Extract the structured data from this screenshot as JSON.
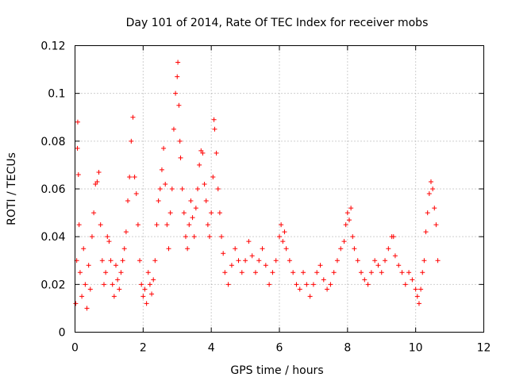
{
  "chart_data": {
    "type": "scatter",
    "title": "Day 101 of 2014, Rate Of TEC Index for receiver mobs",
    "xlabel": "GPS time / hours",
    "ylabel": "ROTI / TECUs",
    "xlim": [
      0,
      12
    ],
    "ylim": [
      0,
      0.12
    ],
    "xticks": [
      0,
      2,
      4,
      6,
      8,
      10,
      12
    ],
    "xtick_labels": [
      "0",
      "2",
      "4",
      "6",
      "8",
      "10",
      "12"
    ],
    "yticks": [
      0,
      0.02,
      0.04,
      0.06,
      0.08,
      0.1,
      0.12
    ],
    "ytick_labels": [
      "0",
      "0.02",
      "0.04",
      "0.06",
      "0.08",
      "0.1",
      "0.12"
    ],
    "grid": true,
    "marker": "+",
    "color": "#ff0000",
    "series": [
      {
        "name": "ROTI",
        "points": [
          [
            0.02,
            0.012
          ],
          [
            0.05,
            0.03
          ],
          [
            0.07,
            0.077
          ],
          [
            0.08,
            0.088
          ],
          [
            0.1,
            0.066
          ],
          [
            0.12,
            0.045
          ],
          [
            0.15,
            0.025
          ],
          [
            0.2,
            0.015
          ],
          [
            0.25,
            0.035
          ],
          [
            0.3,
            0.02
          ],
          [
            0.35,
            0.01
          ],
          [
            0.4,
            0.028
          ],
          [
            0.45,
            0.018
          ],
          [
            0.5,
            0.04
          ],
          [
            0.55,
            0.05
          ],
          [
            0.6,
            0.062
          ],
          [
            0.65,
            0.063
          ],
          [
            0.7,
            0.067
          ],
          [
            0.75,
            0.045
          ],
          [
            0.8,
            0.03
          ],
          [
            0.85,
            0.02
          ],
          [
            0.9,
            0.025
          ],
          [
            0.95,
            0.04
          ],
          [
            1.0,
            0.038
          ],
          [
            1.05,
            0.03
          ],
          [
            1.1,
            0.02
          ],
          [
            1.15,
            0.015
          ],
          [
            1.2,
            0.028
          ],
          [
            1.25,
            0.022
          ],
          [
            1.3,
            0.018
          ],
          [
            1.35,
            0.025
          ],
          [
            1.4,
            0.03
          ],
          [
            1.45,
            0.035
          ],
          [
            1.5,
            0.042
          ],
          [
            1.55,
            0.055
          ],
          [
            1.6,
            0.065
          ],
          [
            1.65,
            0.08
          ],
          [
            1.7,
            0.09
          ],
          [
            1.75,
            0.065
          ],
          [
            1.8,
            0.058
          ],
          [
            1.85,
            0.045
          ],
          [
            1.9,
            0.03
          ],
          [
            1.95,
            0.02
          ],
          [
            2.0,
            0.015
          ],
          [
            2.05,
            0.018
          ],
          [
            2.1,
            0.012
          ],
          [
            2.15,
            0.025
          ],
          [
            2.2,
            0.02
          ],
          [
            2.25,
            0.016
          ],
          [
            2.3,
            0.022
          ],
          [
            2.35,
            0.03
          ],
          [
            2.4,
            0.045
          ],
          [
            2.45,
            0.055
          ],
          [
            2.5,
            0.06
          ],
          [
            2.55,
            0.068
          ],
          [
            2.6,
            0.077
          ],
          [
            2.65,
            0.062
          ],
          [
            2.7,
            0.045
          ],
          [
            2.75,
            0.035
          ],
          [
            2.8,
            0.05
          ],
          [
            2.85,
            0.06
          ],
          [
            2.9,
            0.085
          ],
          [
            2.95,
            0.1
          ],
          [
            3.0,
            0.107
          ],
          [
            3.02,
            0.113
          ],
          [
            3.05,
            0.095
          ],
          [
            3.08,
            0.08
          ],
          [
            3.1,
            0.073
          ],
          [
            3.15,
            0.06
          ],
          [
            3.2,
            0.05
          ],
          [
            3.25,
            0.04
          ],
          [
            3.3,
            0.035
          ],
          [
            3.35,
            0.045
          ],
          [
            3.4,
            0.055
          ],
          [
            3.45,
            0.048
          ],
          [
            3.5,
            0.04
          ],
          [
            3.55,
            0.052
          ],
          [
            3.6,
            0.06
          ],
          [
            3.65,
            0.07
          ],
          [
            3.7,
            0.076
          ],
          [
            3.75,
            0.075
          ],
          [
            3.8,
            0.062
          ],
          [
            3.85,
            0.055
          ],
          [
            3.9,
            0.045
          ],
          [
            3.95,
            0.04
          ],
          [
            4.0,
            0.05
          ],
          [
            4.05,
            0.065
          ],
          [
            4.08,
            0.089
          ],
          [
            4.1,
            0.085
          ],
          [
            4.15,
            0.075
          ],
          [
            4.2,
            0.06
          ],
          [
            4.25,
            0.05
          ],
          [
            4.3,
            0.04
          ],
          [
            4.35,
            0.033
          ],
          [
            4.4,
            0.025
          ],
          [
            4.5,
            0.02
          ],
          [
            4.6,
            0.028
          ],
          [
            4.7,
            0.035
          ],
          [
            4.8,
            0.03
          ],
          [
            4.9,
            0.025
          ],
          [
            5.0,
            0.03
          ],
          [
            5.1,
            0.038
          ],
          [
            5.2,
            0.032
          ],
          [
            5.3,
            0.025
          ],
          [
            5.4,
            0.03
          ],
          [
            5.5,
            0.035
          ],
          [
            5.6,
            0.028
          ],
          [
            5.7,
            0.02
          ],
          [
            5.8,
            0.025
          ],
          [
            5.9,
            0.03
          ],
          [
            6.0,
            0.04
          ],
          [
            6.05,
            0.045
          ],
          [
            6.1,
            0.038
          ],
          [
            6.15,
            0.042
          ],
          [
            6.2,
            0.035
          ],
          [
            6.3,
            0.03
          ],
          [
            6.4,
            0.025
          ],
          [
            6.5,
            0.02
          ],
          [
            6.6,
            0.018
          ],
          [
            6.7,
            0.025
          ],
          [
            6.8,
            0.02
          ],
          [
            6.9,
            0.015
          ],
          [
            7.0,
            0.02
          ],
          [
            7.1,
            0.025
          ],
          [
            7.2,
            0.028
          ],
          [
            7.3,
            0.022
          ],
          [
            7.4,
            0.018
          ],
          [
            7.5,
            0.02
          ],
          [
            7.6,
            0.025
          ],
          [
            7.7,
            0.03
          ],
          [
            7.8,
            0.035
          ],
          [
            7.9,
            0.038
          ],
          [
            7.95,
            0.045
          ],
          [
            8.0,
            0.05
          ],
          [
            8.05,
            0.047
          ],
          [
            8.1,
            0.052
          ],
          [
            8.15,
            0.04
          ],
          [
            8.2,
            0.035
          ],
          [
            8.3,
            0.03
          ],
          [
            8.4,
            0.025
          ],
          [
            8.5,
            0.022
          ],
          [
            8.6,
            0.02
          ],
          [
            8.7,
            0.025
          ],
          [
            8.8,
            0.03
          ],
          [
            8.9,
            0.028
          ],
          [
            9.0,
            0.025
          ],
          [
            9.1,
            0.03
          ],
          [
            9.2,
            0.035
          ],
          [
            9.3,
            0.04
          ],
          [
            9.35,
            0.04
          ],
          [
            9.4,
            0.032
          ],
          [
            9.5,
            0.028
          ],
          [
            9.6,
            0.025
          ],
          [
            9.7,
            0.02
          ],
          [
            9.8,
            0.025
          ],
          [
            9.9,
            0.022
          ],
          [
            10.0,
            0.018
          ],
          [
            10.05,
            0.015
          ],
          [
            10.1,
            0.012
          ],
          [
            10.15,
            0.018
          ],
          [
            10.2,
            0.025
          ],
          [
            10.25,
            0.03
          ],
          [
            10.3,
            0.042
          ],
          [
            10.35,
            0.05
          ],
          [
            10.4,
            0.058
          ],
          [
            10.45,
            0.063
          ],
          [
            10.5,
            0.06
          ],
          [
            10.55,
            0.052
          ],
          [
            10.6,
            0.045
          ],
          [
            10.65,
            0.03
          ]
        ]
      }
    ]
  }
}
